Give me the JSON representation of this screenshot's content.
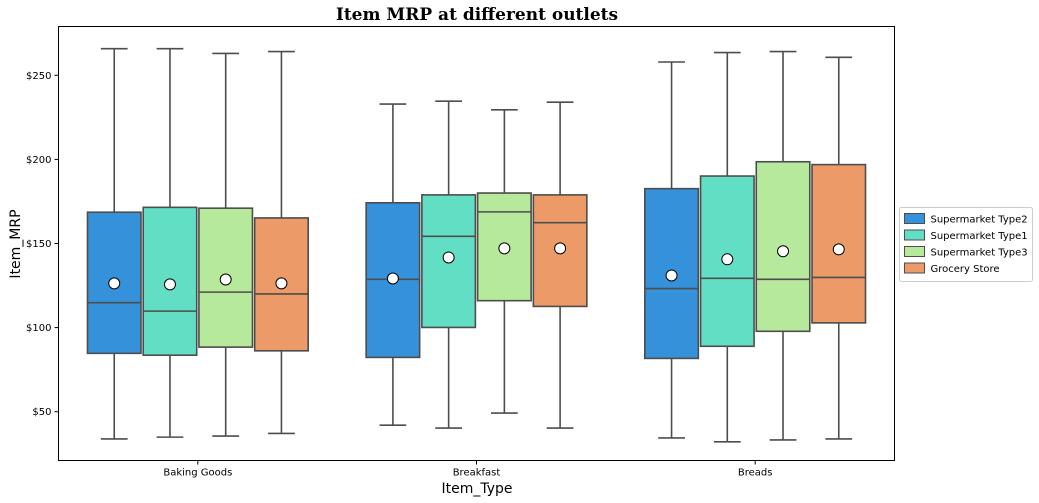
{
  "chart_data": {
    "type": "box",
    "title": "Item MRP at different outlets",
    "xlabel": "Item_Type",
    "ylabel": "Item_MRP",
    "categories": [
      "Baking Goods",
      "Breakfast",
      "Breads"
    ],
    "ylim": [
      21,
      279
    ],
    "yticks": [
      50,
      100,
      150,
      200,
      250
    ],
    "ytick_labels": [
      "$50",
      "$100",
      "$150",
      "$200",
      "$250"
    ],
    "grid": false,
    "legend_position": "center-right",
    "series": [
      {
        "name": "Supermarket Type2",
        "color": "#3592da",
        "boxes": [
          {
            "whisker_low": 33.8,
            "q1": 84.7,
            "median": 114.8,
            "q3": 168.6,
            "whisker_high": 265.8,
            "mean": 126.3
          },
          {
            "whisker_low": 42.0,
            "q1": 82.3,
            "median": 128.7,
            "q3": 174.2,
            "whisker_high": 232.9,
            "mean": 129.2
          },
          {
            "whisker_low": 34.4,
            "q1": 81.7,
            "median": 123.2,
            "q3": 182.6,
            "whisker_high": 257.9,
            "mean": 131.0
          }
        ]
      },
      {
        "name": "Supermarket Type1",
        "color": "#62dec4",
        "boxes": [
          {
            "whisker_low": 34.9,
            "q1": 83.6,
            "median": 109.8,
            "q3": 171.5,
            "whisker_high": 265.8,
            "mean": 125.7
          },
          {
            "whisker_low": 40.3,
            "q1": 100.1,
            "median": 154.3,
            "q3": 178.9,
            "whisker_high": 234.6,
            "mean": 141.7
          },
          {
            "whisker_low": 32.1,
            "q1": 88.9,
            "median": 129.3,
            "q3": 190.1,
            "whisker_high": 263.5,
            "mean": 140.6
          }
        ]
      },
      {
        "name": "Supermarket Type3",
        "color": "#b7e99c",
        "boxes": [
          {
            "whisker_low": 35.5,
            "q1": 88.4,
            "median": 121.1,
            "q3": 171.0,
            "whisker_high": 263.0,
            "mean": 128.6
          },
          {
            "whisker_low": 49.2,
            "q1": 116.0,
            "median": 168.8,
            "q3": 180.0,
            "whisker_high": 229.5,
            "mean": 147.1
          },
          {
            "whisker_low": 33.2,
            "q1": 97.8,
            "median": 128.7,
            "q3": 198.6,
            "whisker_high": 264.1,
            "mean": 145.4
          }
        ]
      },
      {
        "name": "Grocery Store",
        "color": "#ec9a67",
        "boxes": [
          {
            "whisker_low": 37.1,
            "q1": 86.2,
            "median": 120.0,
            "q3": 165.2,
            "whisker_high": 264.1,
            "mean": 126.3
          },
          {
            "whisker_low": 40.3,
            "q1": 112.6,
            "median": 162.4,
            "q3": 178.9,
            "whisker_high": 234.0,
            "mean": 147.1
          },
          {
            "whisker_low": 33.8,
            "q1": 102.8,
            "median": 129.8,
            "q3": 196.9,
            "whisker_high": 260.7,
            "mean": 146.5
          }
        ]
      }
    ]
  }
}
